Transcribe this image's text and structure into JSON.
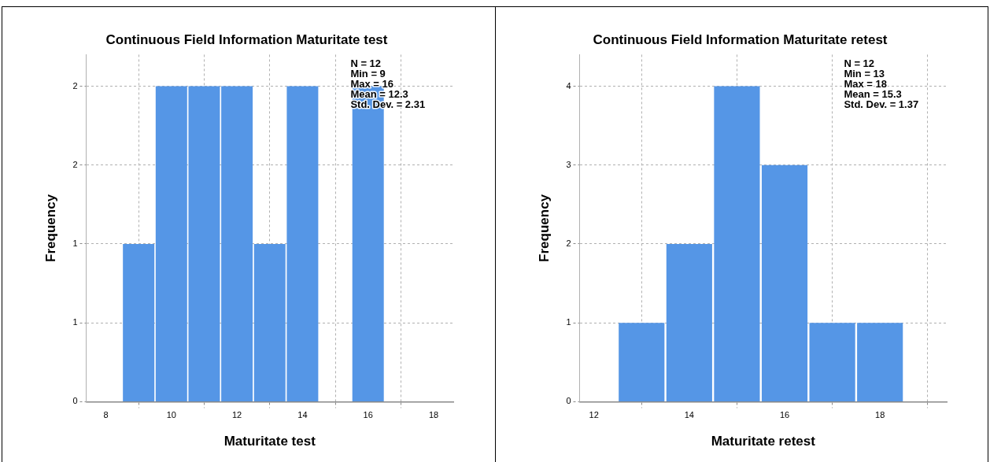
{
  "chart_data": [
    {
      "type": "histogram",
      "title": "Continuous Field Information Maturitate test",
      "xlabel": "Maturitate test",
      "ylabel": "Frequency",
      "bins": [
        8.5,
        9.5,
        10.5,
        11.5,
        12.5,
        13.5,
        14.5,
        15.5,
        16.5
      ],
      "values": [
        1,
        2,
        2,
        2,
        1,
        2,
        0,
        2
      ],
      "color": "#5596e6",
      "xlim": [
        7.4,
        18.6
      ],
      "xticks": [
        8,
        10,
        12,
        14,
        16,
        18
      ],
      "ylim": [
        0,
        2.2
      ],
      "yticks": [
        0,
        {
          "value": 0.5,
          "label": "1"
        },
        {
          "value": 1,
          "label": "1"
        },
        {
          "value": 1.5,
          "label": "2"
        },
        2
      ],
      "grid": true,
      "legend": false,
      "annotations": [
        "N = 12",
        "Min = 9",
        "Max = 16",
        "Mean = 12.3",
        "Std. Dev. = 2.31"
      ]
    },
    {
      "type": "histogram",
      "title": "Continuous Field Information Maturitate retest",
      "xlabel": "Maturitate retest",
      "ylabel": "Frequency",
      "bins": [
        12.5,
        13.5,
        14.5,
        15.5,
        16.5,
        17.5,
        18.5
      ],
      "values": [
        1,
        2,
        4,
        3,
        1,
        1
      ],
      "color": "#5596e6",
      "xlim": [
        11.7,
        19.4
      ],
      "xticks": [
        12,
        14,
        16,
        18
      ],
      "ylim": [
        0,
        4.4
      ],
      "yticks": [
        0,
        1,
        2,
        3,
        4
      ],
      "grid": true,
      "legend": false,
      "annotations": [
        "N = 12",
        "Min = 13",
        "Max = 18",
        "Mean = 15.3",
        "Std. Dev. = 1.37"
      ]
    }
  ]
}
